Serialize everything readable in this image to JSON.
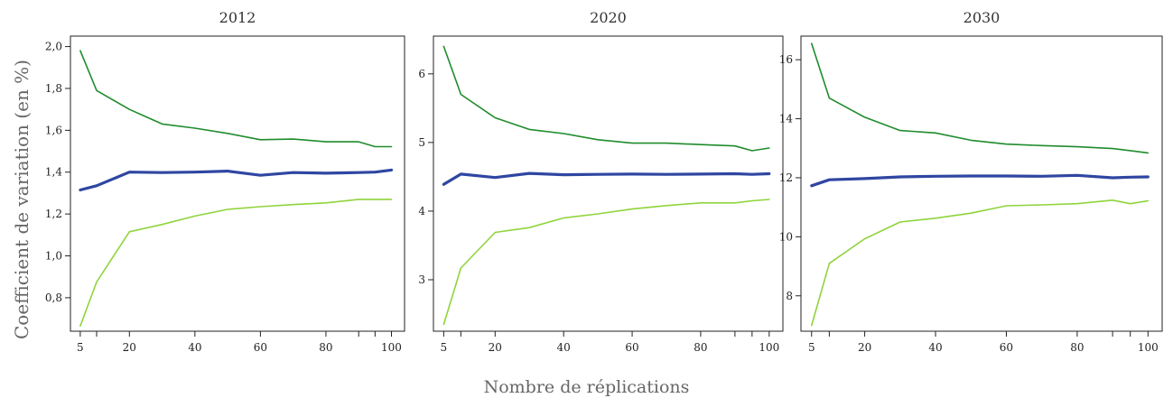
{
  "figure": {
    "ylabel": "Coefficient de variation (en %)",
    "xlabel": "Nombre de réplications"
  },
  "colors": {
    "upper": "#1f8c2c",
    "mean": "#2f46a1",
    "lower": "#8fd43c",
    "axis": "#222222"
  },
  "chart_data": [
    {
      "type": "line",
      "title": "2012",
      "x_ticks": [
        5,
        20,
        40,
        60,
        80,
        100
      ],
      "y_ticks": [
        0.8,
        1.0,
        1.2,
        1.4,
        1.6,
        1.8,
        2.0
      ],
      "y_tick_labels": [
        "0,8",
        "1,0",
        "1,2",
        "1,4",
        "1,6",
        "1,8",
        "2,0"
      ],
      "xlim": [
        2,
        104
      ],
      "ylim": [
        0.64,
        2.05
      ],
      "series": [
        {
          "role": "upper",
          "x": [
            5,
            10,
            20,
            30,
            40,
            50,
            60,
            70,
            80,
            90,
            95,
            100
          ],
          "values": [
            1.98,
            1.79,
            1.7,
            1.63,
            1.61,
            1.585,
            1.555,
            1.558,
            1.545,
            1.545,
            1.522,
            1.522
          ]
        },
        {
          "role": "mean",
          "x": [
            5,
            10,
            20,
            30,
            40,
            50,
            60,
            70,
            80,
            90,
            95,
            100
          ],
          "values": [
            1.315,
            1.335,
            1.4,
            1.398,
            1.4,
            1.405,
            1.385,
            1.398,
            1.395,
            1.398,
            1.4,
            1.41
          ]
        },
        {
          "role": "lower",
          "x": [
            5,
            10,
            20,
            30,
            40,
            50,
            60,
            70,
            80,
            90,
            95,
            100
          ],
          "values": [
            0.665,
            0.875,
            1.115,
            1.15,
            1.19,
            1.222,
            1.235,
            1.245,
            1.253,
            1.27,
            1.27,
            1.27
          ]
        }
      ]
    },
    {
      "type": "line",
      "title": "2020",
      "x_ticks": [
        5,
        20,
        40,
        60,
        80,
        100
      ],
      "y_ticks": [
        3,
        4,
        5,
        6
      ],
      "y_tick_labels": [
        "3",
        "4",
        "5",
        "6"
      ],
      "xlim": [
        2,
        104
      ],
      "ylim": [
        2.25,
        6.55
      ],
      "series": [
        {
          "role": "upper",
          "x": [
            5,
            10,
            20,
            30,
            40,
            50,
            60,
            70,
            80,
            90,
            95,
            100
          ],
          "values": [
            6.4,
            5.7,
            5.36,
            5.19,
            5.13,
            5.04,
            4.99,
            4.99,
            4.97,
            4.95,
            4.88,
            4.92
          ]
        },
        {
          "role": "mean",
          "x": [
            5,
            10,
            20,
            30,
            40,
            50,
            60,
            70,
            80,
            90,
            95,
            100
          ],
          "values": [
            4.39,
            4.54,
            4.49,
            4.55,
            4.53,
            4.535,
            4.54,
            4.535,
            4.54,
            4.545,
            4.535,
            4.545
          ]
        },
        {
          "role": "lower",
          "x": [
            5,
            10,
            20,
            30,
            40,
            50,
            60,
            70,
            80,
            90,
            95,
            100
          ],
          "values": [
            2.35,
            3.17,
            3.69,
            3.76,
            3.9,
            3.96,
            4.03,
            4.08,
            4.12,
            4.12,
            4.15,
            4.17
          ]
        }
      ]
    },
    {
      "type": "line",
      "title": "2030",
      "x_ticks": [
        5,
        20,
        40,
        60,
        80,
        100
      ],
      "y_ticks": [
        8,
        10,
        12,
        14,
        16
      ],
      "y_tick_labels": [
        "8",
        "10",
        "12",
        "14",
        "16"
      ],
      "xlim": [
        2,
        104
      ],
      "ylim": [
        6.8,
        16.8
      ],
      "series": [
        {
          "role": "upper",
          "x": [
            5,
            10,
            20,
            30,
            40,
            50,
            60,
            70,
            80,
            90,
            95,
            100
          ],
          "values": [
            16.55,
            14.7,
            14.05,
            13.6,
            13.52,
            13.27,
            13.14,
            13.09,
            13.05,
            12.99,
            12.92,
            12.84
          ]
        },
        {
          "role": "mean",
          "x": [
            5,
            10,
            20,
            30,
            40,
            50,
            60,
            70,
            80,
            90,
            95,
            100
          ],
          "values": [
            11.73,
            11.93,
            11.97,
            12.03,
            12.05,
            12.06,
            12.06,
            12.05,
            12.08,
            12.0,
            12.02,
            12.03
          ]
        },
        {
          "role": "lower",
          "x": [
            5,
            10,
            20,
            30,
            40,
            50,
            60,
            70,
            80,
            90,
            95,
            100
          ],
          "values": [
            7.0,
            9.1,
            9.93,
            10.5,
            10.63,
            10.8,
            11.05,
            11.08,
            11.12,
            11.24,
            11.12,
            11.22
          ]
        }
      ]
    }
  ]
}
